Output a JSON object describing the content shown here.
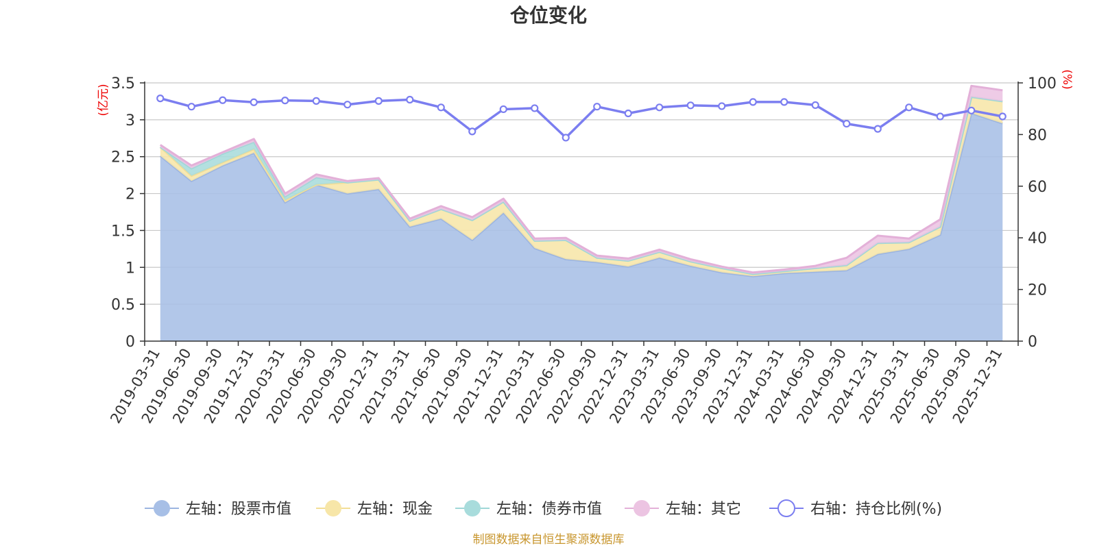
{
  "chart_data": {
    "type": "area",
    "title": "仓位变化",
    "source_note": "制图数据来自恒生聚源数据库",
    "left_axis": {
      "unit": "(亿元)",
      "min": 0,
      "max": 3.5,
      "ticks": [
        "0",
        "0.5",
        "1",
        "1.5",
        "2",
        "2.5",
        "3",
        "3.5"
      ]
    },
    "right_axis": {
      "unit": "(%)",
      "min": 0,
      "max": 100,
      "ticks": [
        "0",
        "20",
        "40",
        "60",
        "80",
        "100"
      ]
    },
    "grid": true,
    "legend_position": "bottom",
    "x": [
      "2019-03-31",
      "2019-06-30",
      "2019-09-30",
      "2019-12-31",
      "2020-03-31",
      "2020-06-30",
      "2020-09-30",
      "2020-12-31",
      "2021-03-31",
      "2021-06-30",
      "2021-09-30",
      "2021-12-31",
      "2022-03-31",
      "2022-06-30",
      "2022-09-30",
      "2022-12-31",
      "2023-03-31",
      "2023-06-30",
      "2023-09-30",
      "2023-12-31",
      "2024-03-31",
      "2024-06-30",
      "2024-09-30",
      "2024-12-31",
      "2025-03-31",
      "2025-06-30",
      "2025-09-30",
      "2025-12-31"
    ],
    "stacked_series": [
      {
        "name": "左轴：股票市值",
        "axis": "left",
        "color": "#a7bfe6",
        "line_color": "#9bb4e0",
        "values": [
          2.51,
          2.17,
          2.38,
          2.55,
          1.88,
          2.12,
          2.0,
          2.06,
          1.55,
          1.66,
          1.37,
          1.74,
          1.26,
          1.11,
          1.07,
          1.01,
          1.13,
          1.02,
          0.93,
          0.88,
          0.92,
          0.94,
          0.96,
          1.18,
          1.25,
          1.44,
          3.09,
          2.95
        ]
      },
      {
        "name": "左轴：现金",
        "axis": "left",
        "color": "#f7e6a8",
        "line_color": "#f3de96",
        "values": [
          0.12,
          0.07,
          0.04,
          0.05,
          0.03,
          0.0,
          0.15,
          0.13,
          0.08,
          0.13,
          0.27,
          0.15,
          0.1,
          0.26,
          0.06,
          0.08,
          0.08,
          0.06,
          0.06,
          0.03,
          0.03,
          0.05,
          0.07,
          0.15,
          0.09,
          0.11,
          0.22,
          0.3
        ]
      },
      {
        "name": "左轴：债券市值",
        "axis": "left",
        "color": "#a8dcdc",
        "line_color": "#9fd7d7",
        "values": [
          0.0,
          0.1,
          0.12,
          0.1,
          0.05,
          0.1,
          0.0,
          0.0,
          0.0,
          0.0,
          0.0,
          0.0,
          0.0,
          0.0,
          0.0,
          0.0,
          0.0,
          0.0,
          0.0,
          0.0,
          0.0,
          0.0,
          0.0,
          0.0,
          0.0,
          0.0,
          0.0,
          0.0
        ]
      },
      {
        "name": "左轴：其它",
        "axis": "left",
        "color": "#ecc4e2",
        "line_color": "#e3b0d8",
        "values": [
          0.03,
          0.04,
          0.02,
          0.04,
          0.04,
          0.04,
          0.02,
          0.02,
          0.03,
          0.04,
          0.04,
          0.04,
          0.03,
          0.03,
          0.03,
          0.03,
          0.03,
          0.03,
          0.02,
          0.02,
          0.02,
          0.03,
          0.1,
          0.1,
          0.05,
          0.1,
          0.15,
          0.15
        ]
      }
    ],
    "line_series": {
      "name": "右轴：持仓比例(%)",
      "axis": "right",
      "color": "#7b7ef0",
      "values": [
        94.0,
        90.8,
        93.3,
        92.5,
        93.2,
        93.0,
        91.6,
        93.0,
        93.5,
        90.5,
        81.2,
        89.8,
        90.2,
        78.8,
        90.8,
        88.2,
        90.5,
        91.3,
        91.0,
        92.6,
        92.6,
        91.4,
        84.2,
        82.2,
        90.5,
        87.0,
        89.3,
        87.0
      ]
    }
  }
}
